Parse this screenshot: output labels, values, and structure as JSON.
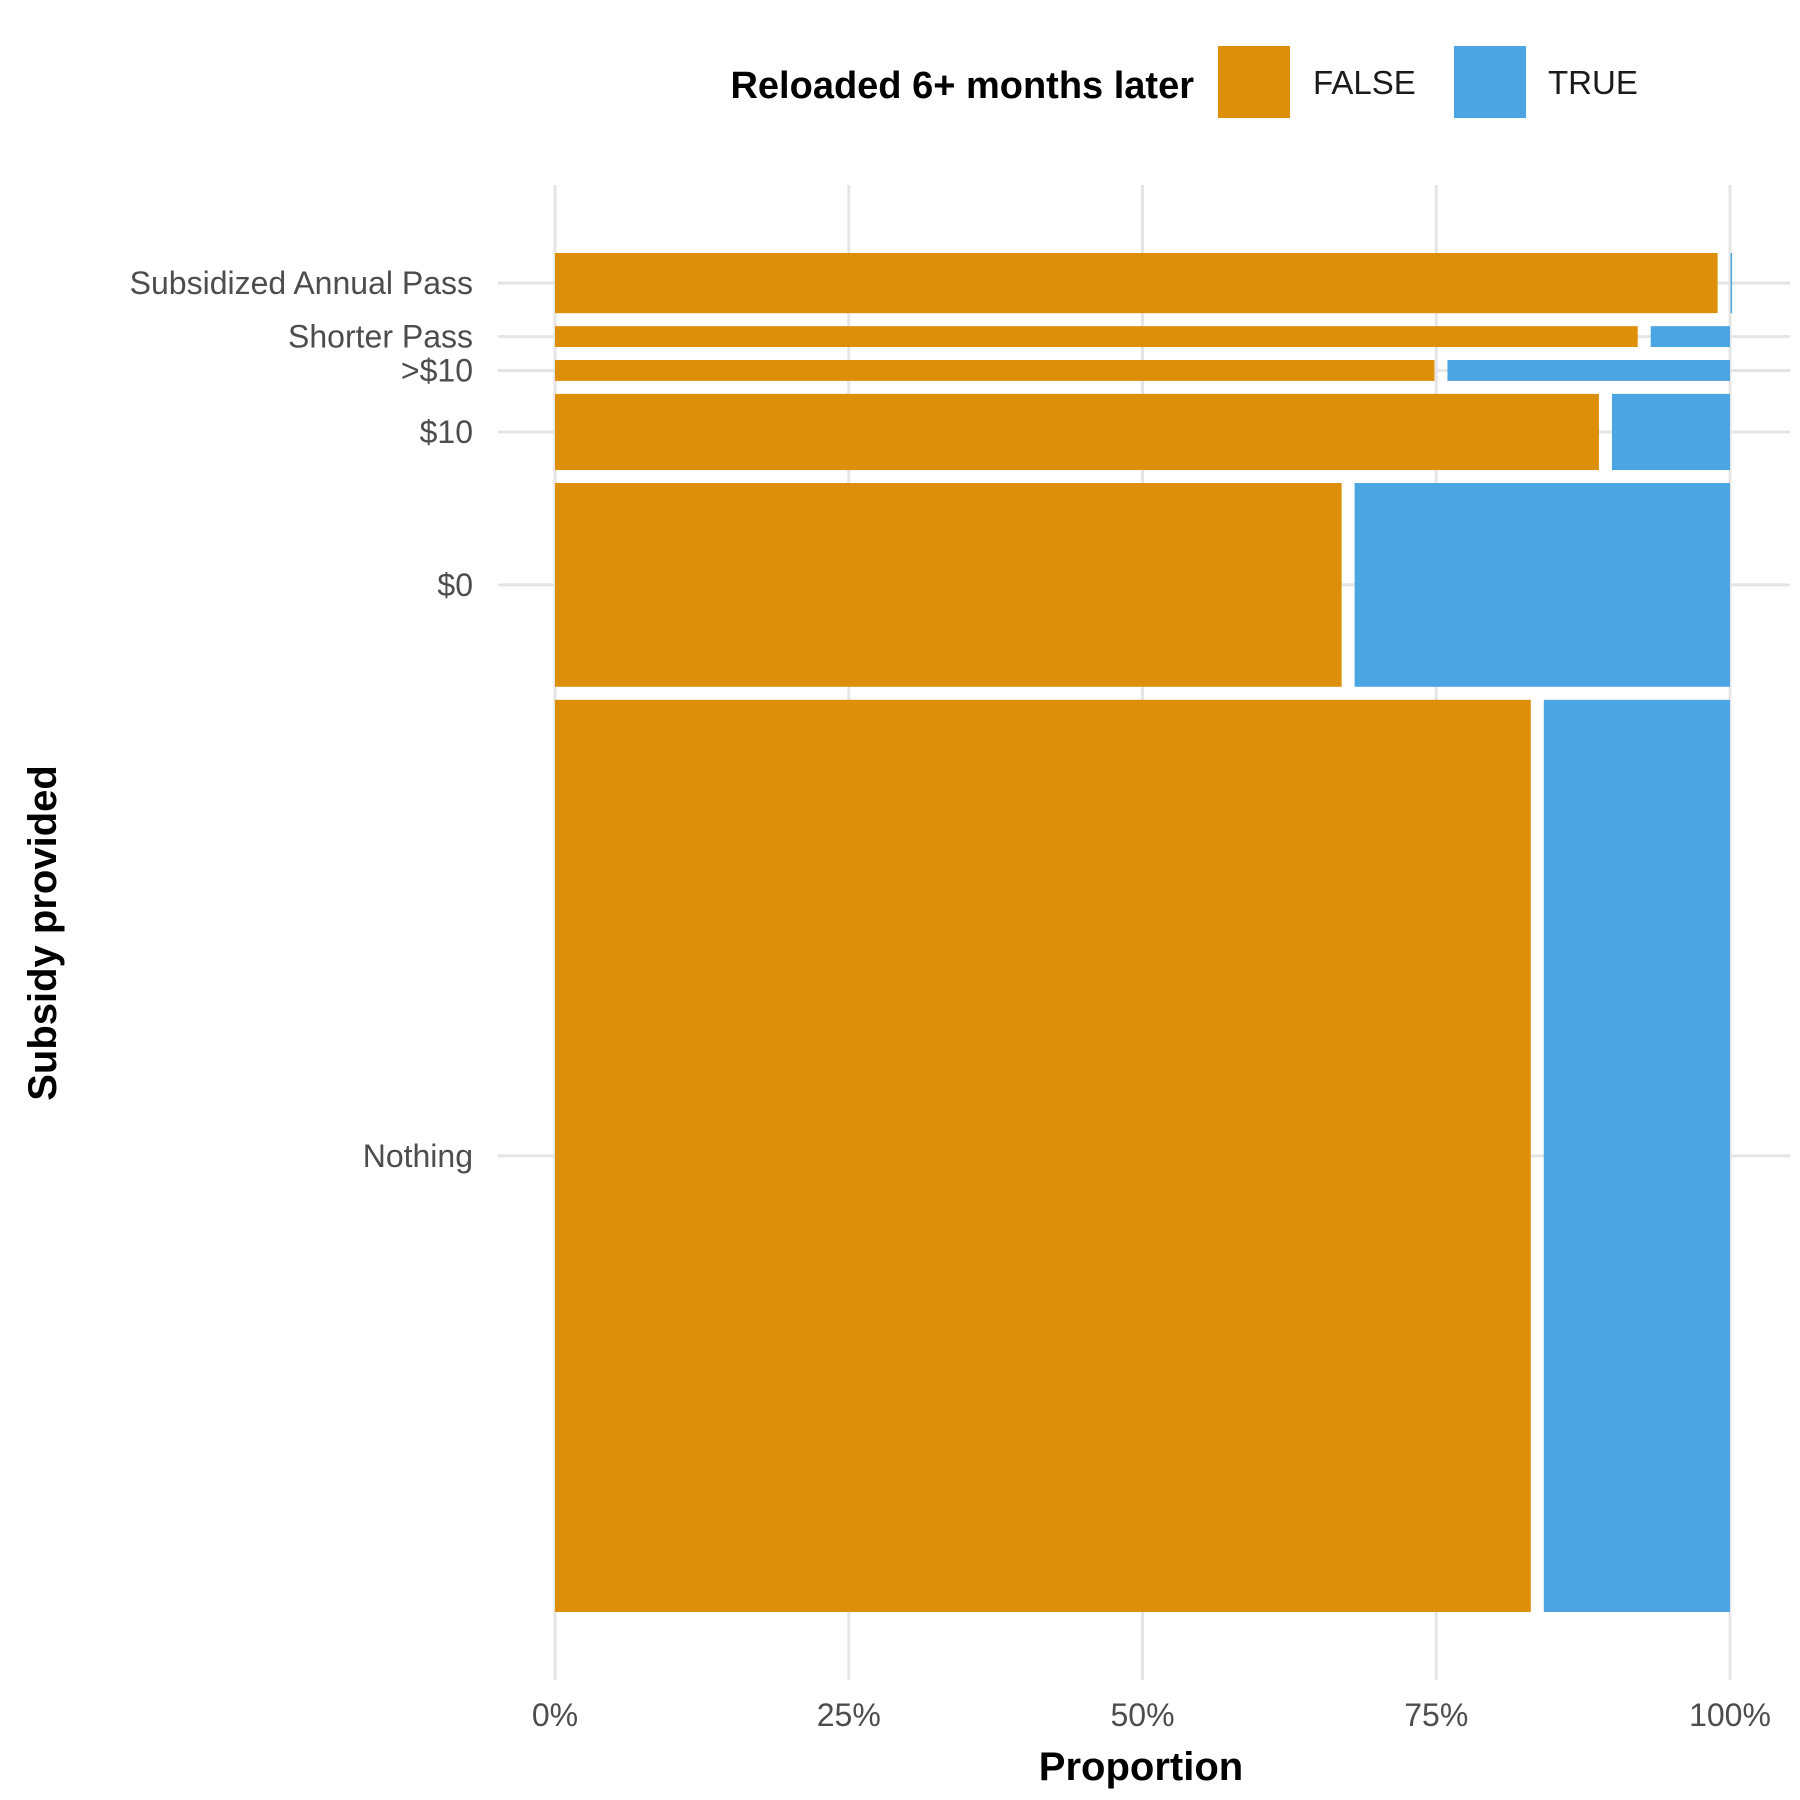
{
  "chart_data": {
    "type": "bar",
    "orientation": "horizontal",
    "stacked": "proportion",
    "variable_height": true,
    "xlabel": "Proportion",
    "ylabel": "Subsidy provided",
    "xlim": [
      0,
      1
    ],
    "x_ticks": [
      "0%",
      "25%",
      "50%",
      "75%",
      "100%"
    ],
    "grid": true,
    "legend": {
      "title": "Reloaded 6+ months later",
      "position": "top",
      "entries": [
        {
          "label": "FALSE",
          "color": "#DE8F09"
        },
        {
          "label": "TRUE",
          "color": "#4BA5E2"
        }
      ]
    },
    "categories": [
      "Subsidized Annual Pass",
      "Shorter Pass",
      ">$10",
      "$10",
      "$0",
      "Nothing"
    ],
    "category_share": [
      0.049,
      0.017,
      0.017,
      0.062,
      0.166,
      0.743
    ],
    "series": [
      {
        "name": "FALSE",
        "color": "#DE8F09",
        "values": [
          0.995,
          0.927,
          0.754,
          0.894,
          0.675,
          0.836
        ]
      },
      {
        "name": "TRUE",
        "color": "#4BA5E2",
        "values": [
          0.005,
          0.073,
          0.246,
          0.106,
          0.325,
          0.164
        ]
      }
    ]
  }
}
